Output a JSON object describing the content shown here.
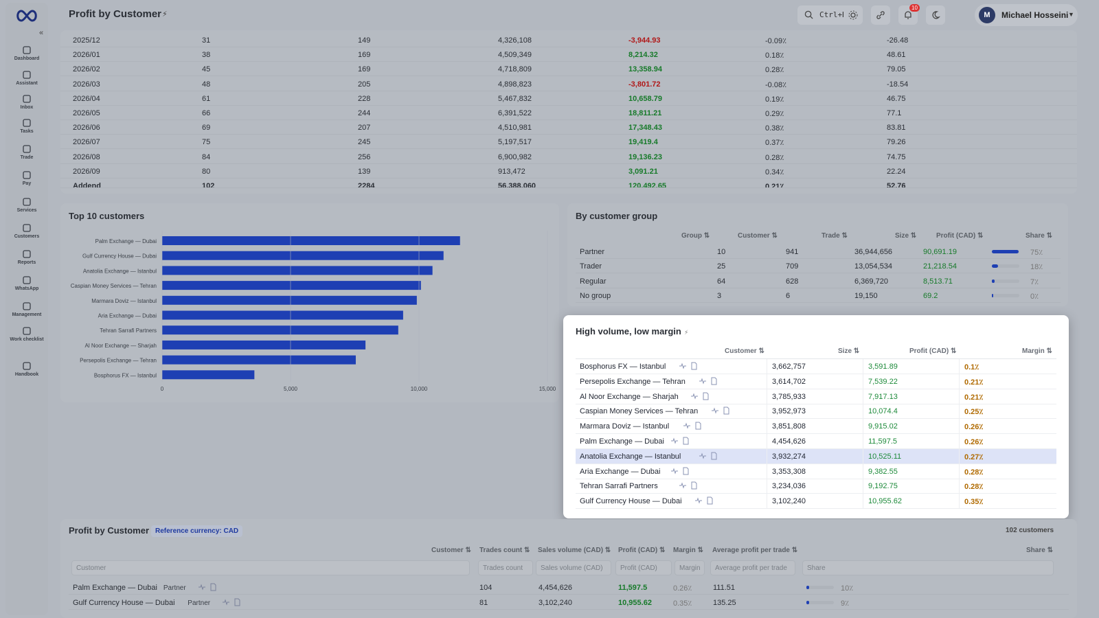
{
  "header": {
    "title": "Profit by Customer",
    "search_shortcut": "Ctrl+K",
    "notifications_count": "10",
    "user_initial": "M",
    "user_name": "Michael Hosseini"
  },
  "sidebar": {
    "items": [
      {
        "label": "Dashboard",
        "icon": "dashboard-icon"
      },
      {
        "label": "Assistant",
        "icon": "sparkle-icon"
      },
      {
        "label": "Inbox",
        "icon": "inbox-icon"
      },
      {
        "label": "Tasks",
        "icon": "check-icon"
      },
      {
        "label": "Trade",
        "icon": "swap-icon"
      },
      {
        "label": "Pay",
        "icon": "wallet-icon"
      },
      {
        "label": "Services",
        "icon": "bolt-icon"
      },
      {
        "label": "Customers",
        "icon": "users-icon"
      },
      {
        "label": "Reports",
        "icon": "report-icon"
      },
      {
        "label": "WhatsApp",
        "icon": "chat-icon"
      },
      {
        "label": "Management",
        "icon": "sliders-icon"
      },
      {
        "label": "Work checklist",
        "icon": "checklist-icon"
      },
      {
        "label": "Handbook",
        "icon": "book-icon"
      }
    ]
  },
  "monthly": {
    "rows": [
      {
        "month": "2025/12",
        "customers": "31",
        "trades": "149",
        "volume": "4,326,108",
        "profit": "-3,944.93",
        "margin": "-0.09٪",
        "avg": "-26.48",
        "sign": "neg"
      },
      {
        "month": "2026/01",
        "customers": "38",
        "trades": "169",
        "volume": "4,509,349",
        "profit": "8,214.32",
        "margin": "0.18٪",
        "avg": "48.61",
        "sign": "pos"
      },
      {
        "month": "2026/02",
        "customers": "45",
        "trades": "169",
        "volume": "4,718,809",
        "profit": "13,358.94",
        "margin": "0.28٪",
        "avg": "79.05",
        "sign": "pos"
      },
      {
        "month": "2026/03",
        "customers": "48",
        "trades": "205",
        "volume": "4,898,823",
        "profit": "-3,801.72",
        "margin": "-0.08٪",
        "avg": "-18.54",
        "sign": "neg"
      },
      {
        "month": "2026/04",
        "customers": "61",
        "trades": "228",
        "volume": "5,467,832",
        "profit": "10,658.79",
        "margin": "0.19٪",
        "avg": "46.75",
        "sign": "pos"
      },
      {
        "month": "2026/05",
        "customers": "66",
        "trades": "244",
        "volume": "6,391,522",
        "profit": "18,811.21",
        "margin": "0.29٪",
        "avg": "77.1",
        "sign": "pos"
      },
      {
        "month": "2026/06",
        "customers": "69",
        "trades": "207",
        "volume": "4,510,981",
        "profit": "17,348.43",
        "margin": "0.38٪",
        "avg": "83.81",
        "sign": "pos"
      },
      {
        "month": "2026/07",
        "customers": "75",
        "trades": "245",
        "volume": "5,197,517",
        "profit": "19,419.4",
        "margin": "0.37٪",
        "avg": "79.26",
        "sign": "pos"
      },
      {
        "month": "2026/08",
        "customers": "84",
        "trades": "256",
        "volume": "6,900,982",
        "profit": "19,136.23",
        "margin": "0.28٪",
        "avg": "74.75",
        "sign": "pos"
      },
      {
        "month": "2026/09",
        "customers": "80",
        "trades": "139",
        "volume": "913,472",
        "profit": "3,091.21",
        "margin": "0.34٪",
        "avg": "22.24",
        "sign": "pos"
      }
    ],
    "total": {
      "month": "Addend",
      "customers": "102",
      "trades": "2284",
      "volume": "56,388,060",
      "profit": "120,492.65",
      "margin": "0.21٪",
      "avg": "52.76"
    }
  },
  "top10": {
    "title": "Top 10 customers",
    "chart_data": {
      "type": "bar",
      "orientation": "horizontal",
      "categories": [
        "Palm Exchange — Dubai",
        "Gulf Currency House — Dubai",
        "Anatolia Exchange — Istanbul",
        "Caspian Money Services — Tehran",
        "Marmara Doviz — Istanbul",
        "Aria Exchange — Dubai",
        "Tehran Sarrafi Partners",
        "Al Noor Exchange — Sharjah",
        "Persepolis Exchange — Tehran",
        "Bosphorus FX — Istanbul"
      ],
      "values": [
        11597.5,
        10955.62,
        10525.11,
        10074.4,
        9915.02,
        9382.55,
        9192.75,
        7917.13,
        7539.22,
        3591.89
      ],
      "xlim": [
        0,
        15000
      ],
      "xticks": [
        "0",
        "5,000",
        "10,000",
        "15,000"
      ],
      "color": "#1e3fb3"
    }
  },
  "groups": {
    "title": "By customer group",
    "headers": [
      "Group ⇅",
      "Customer ⇅",
      "Trade ⇅",
      "Size ⇅",
      "Profit (CAD) ⇅",
      "Share ⇅"
    ],
    "rows": [
      {
        "group": "Partner",
        "customers": "10",
        "trades": "941",
        "size": "36,944,656",
        "profit": "90,691.19",
        "share": "75٪",
        "share_frac": 0.75
      },
      {
        "group": "Trader",
        "customers": "25",
        "trades": "709",
        "size": "13,054,534",
        "profit": "21,218.54",
        "share": "18٪",
        "share_frac": 0.18
      },
      {
        "group": "Regular",
        "customers": "64",
        "trades": "628",
        "size": "6,369,720",
        "profit": "8,513.71",
        "share": "7٪",
        "share_frac": 0.07
      },
      {
        "group": "No group",
        "customers": "3",
        "trades": "6",
        "size": "19,150",
        "profit": "69.2",
        "share": "0٪",
        "share_frac": 0.0
      }
    ]
  },
  "highvol": {
    "title": "High volume, low margin",
    "headers": [
      "Customer ⇅",
      "Size ⇅",
      "Profit (CAD) ⇅",
      "Margin ⇅"
    ],
    "rows": [
      {
        "name": "Bosphorus FX — Istanbul",
        "size": "3,662,757",
        "profit": "3,591.89",
        "margin": "0.1٪"
      },
      {
        "name": "Persepolis Exchange — Tehran",
        "size": "3,614,702",
        "profit": "7,539.22",
        "margin": "0.21٪"
      },
      {
        "name": "Al Noor Exchange — Sharjah",
        "size": "3,785,933",
        "profit": "7,917.13",
        "margin": "0.21٪"
      },
      {
        "name": "Caspian Money Services — Tehran",
        "size": "3,952,973",
        "profit": "10,074.4",
        "margin": "0.25٪"
      },
      {
        "name": "Marmara Doviz — Istanbul",
        "size": "3,851,808",
        "profit": "9,915.02",
        "margin": "0.26٪"
      },
      {
        "name": "Palm Exchange — Dubai",
        "size": "4,454,626",
        "profit": "11,597.5",
        "margin": "0.26٪"
      },
      {
        "name": "Anatolia Exchange — Istanbul",
        "size": "3,932,274",
        "profit": "10,525.11",
        "margin": "0.27٪"
      },
      {
        "name": "Aria Exchange — Dubai",
        "size": "3,353,308",
        "profit": "9,382.55",
        "margin": "0.28٪"
      },
      {
        "name": "Tehran Sarrafi Partners",
        "size": "3,234,036",
        "profit": "9,192.75",
        "margin": "0.28٪"
      },
      {
        "name": "Gulf Currency House — Dubai",
        "size": "3,102,240",
        "profit": "10,955.62",
        "margin": "0.35٪"
      }
    ],
    "selected_index": 6
  },
  "bottom": {
    "title": "Profit by Customer",
    "ref_currency": "Reference currency: CAD",
    "count": "102 customers",
    "headers": [
      "Customer ⇅",
      "Trades count ⇅",
      "Sales volume (CAD) ⇅",
      "Profit (CAD) ⇅",
      "Margin ⇅",
      "Average profit per trade ⇅",
      "Share ⇅"
    ],
    "filters": [
      "Customer",
      "Trades count",
      "Sales volume (CAD)",
      "Profit (CAD)",
      "Margin",
      "Average profit per trade",
      "Share"
    ],
    "rows": [
      {
        "name": "Palm Exchange — Dubai",
        "tag": "Partner",
        "trades": "104",
        "volume": "4,454,626",
        "profit": "11,597.5",
        "margin": "0.26٪",
        "avg": "111.51",
        "share": "10٪",
        "share_frac": 0.1
      },
      {
        "name": "Gulf Currency House — Dubai",
        "tag": "Partner",
        "trades": "81",
        "volume": "3,102,240",
        "profit": "10,955.62",
        "margin": "0.35٪",
        "avg": "135.25",
        "share": "9٪",
        "share_frac": 0.09
      }
    ]
  }
}
